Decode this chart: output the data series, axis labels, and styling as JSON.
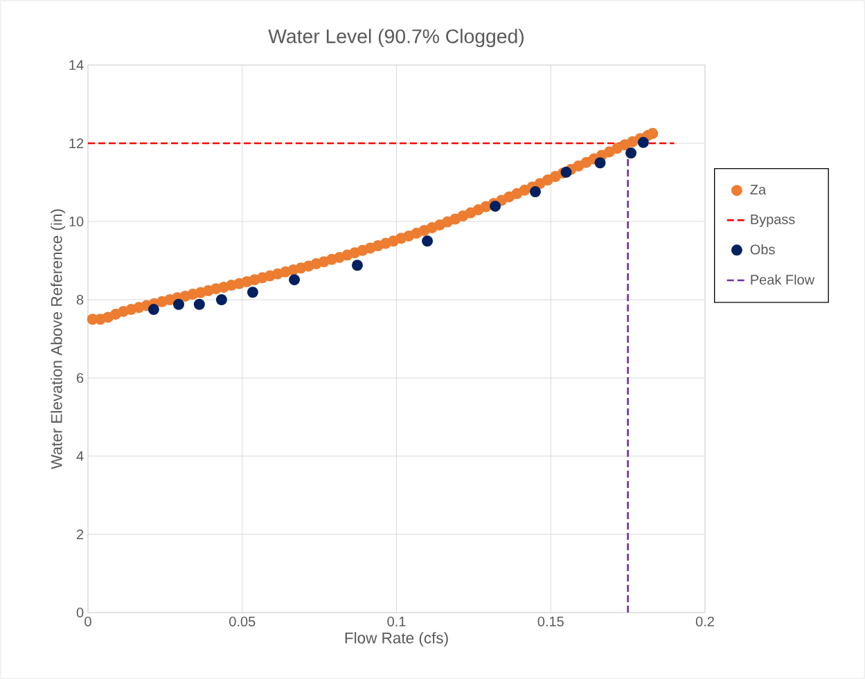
{
  "chart_data": {
    "type": "scatter",
    "title": "Water Level (90.7% Clogged)",
    "xlabel": "Flow Rate  (cfs)",
    "ylabel": "Water Elevation Above Reference (in)",
    "xlim": [
      0,
      0.2
    ],
    "xticks": [
      0,
      0.05,
      0.1,
      0.15,
      0.2
    ],
    "ylim": [
      0,
      14
    ],
    "yticks": [
      0,
      2,
      4,
      6,
      8,
      10,
      12,
      14
    ],
    "grid": true,
    "legend": "right",
    "series": [
      {
        "name": "Za",
        "marker": "circle",
        "color": "#ed7d31",
        "x": [
          0.0015,
          0.004,
          0.0065,
          0.009,
          0.0115,
          0.014,
          0.0165,
          0.019,
          0.0215,
          0.024,
          0.0265,
          0.029,
          0.0315,
          0.034,
          0.0365,
          0.039,
          0.0415,
          0.044,
          0.0465,
          0.049,
          0.0515,
          0.054,
          0.0565,
          0.059,
          0.0615,
          0.064,
          0.0665,
          0.069,
          0.0715,
          0.074,
          0.0765,
          0.079,
          0.0815,
          0.084,
          0.0865,
          0.089,
          0.0915,
          0.094,
          0.0965,
          0.099,
          0.1015,
          0.104,
          0.1065,
          0.109,
          0.1115,
          0.114,
          0.1165,
          0.119,
          0.1215,
          0.124,
          0.1265,
          0.129,
          0.1315,
          0.134,
          0.1365,
          0.139,
          0.1415,
          0.144,
          0.1465,
          0.149,
          0.1515,
          0.154,
          0.1565,
          0.159,
          0.1615,
          0.164,
          0.1665,
          0.169,
          0.1715,
          0.174,
          0.1765,
          0.179,
          0.1815,
          0.183
        ],
        "values": [
          7.5,
          7.5,
          7.55,
          7.63,
          7.7,
          7.75,
          7.8,
          7.85,
          7.9,
          7.95,
          8.0,
          8.05,
          8.09,
          8.14,
          8.18,
          8.23,
          8.28,
          8.32,
          8.37,
          8.41,
          8.46,
          8.51,
          8.56,
          8.61,
          8.66,
          8.71,
          8.76,
          8.81,
          8.86,
          8.92,
          8.97,
          9.03,
          9.08,
          9.14,
          9.2,
          9.26,
          9.32,
          9.38,
          9.44,
          9.5,
          9.57,
          9.63,
          9.7,
          9.77,
          9.84,
          9.91,
          9.99,
          10.06,
          10.14,
          10.22,
          10.3,
          10.38,
          10.46,
          10.54,
          10.63,
          10.71,
          10.8,
          10.88,
          10.97,
          11.06,
          11.15,
          11.24,
          11.33,
          11.42,
          11.51,
          11.6,
          11.69,
          11.78,
          11.87,
          11.96,
          12.04,
          12.12,
          12.2,
          12.25
        ]
      },
      {
        "name": "Bypass",
        "type": "line",
        "marker": "none",
        "line_style": "dashed",
        "color": "#ff0000",
        "x": [
          0,
          0.19
        ],
        "values": [
          12,
          12
        ]
      },
      {
        "name": "Obs",
        "marker": "circle",
        "color": "#002060",
        "x": [
          0.0213,
          0.0294,
          0.0361,
          0.0433,
          0.0534,
          0.0669,
          0.0873,
          0.11,
          0.132,
          0.145,
          0.155,
          0.166,
          0.176,
          0.18
        ],
        "values": [
          7.75,
          7.88,
          7.88,
          8.0,
          8.19,
          8.51,
          8.88,
          9.5,
          10.39,
          10.76,
          11.26,
          11.5,
          11.75,
          12.02
        ]
      },
      {
        "name": "Peak Flow",
        "type": "line",
        "marker": "none",
        "line_style": "dashed",
        "color": "#7030a0",
        "x": [
          0.175,
          0.175
        ],
        "values": [
          0,
          11.9
        ]
      }
    ]
  }
}
